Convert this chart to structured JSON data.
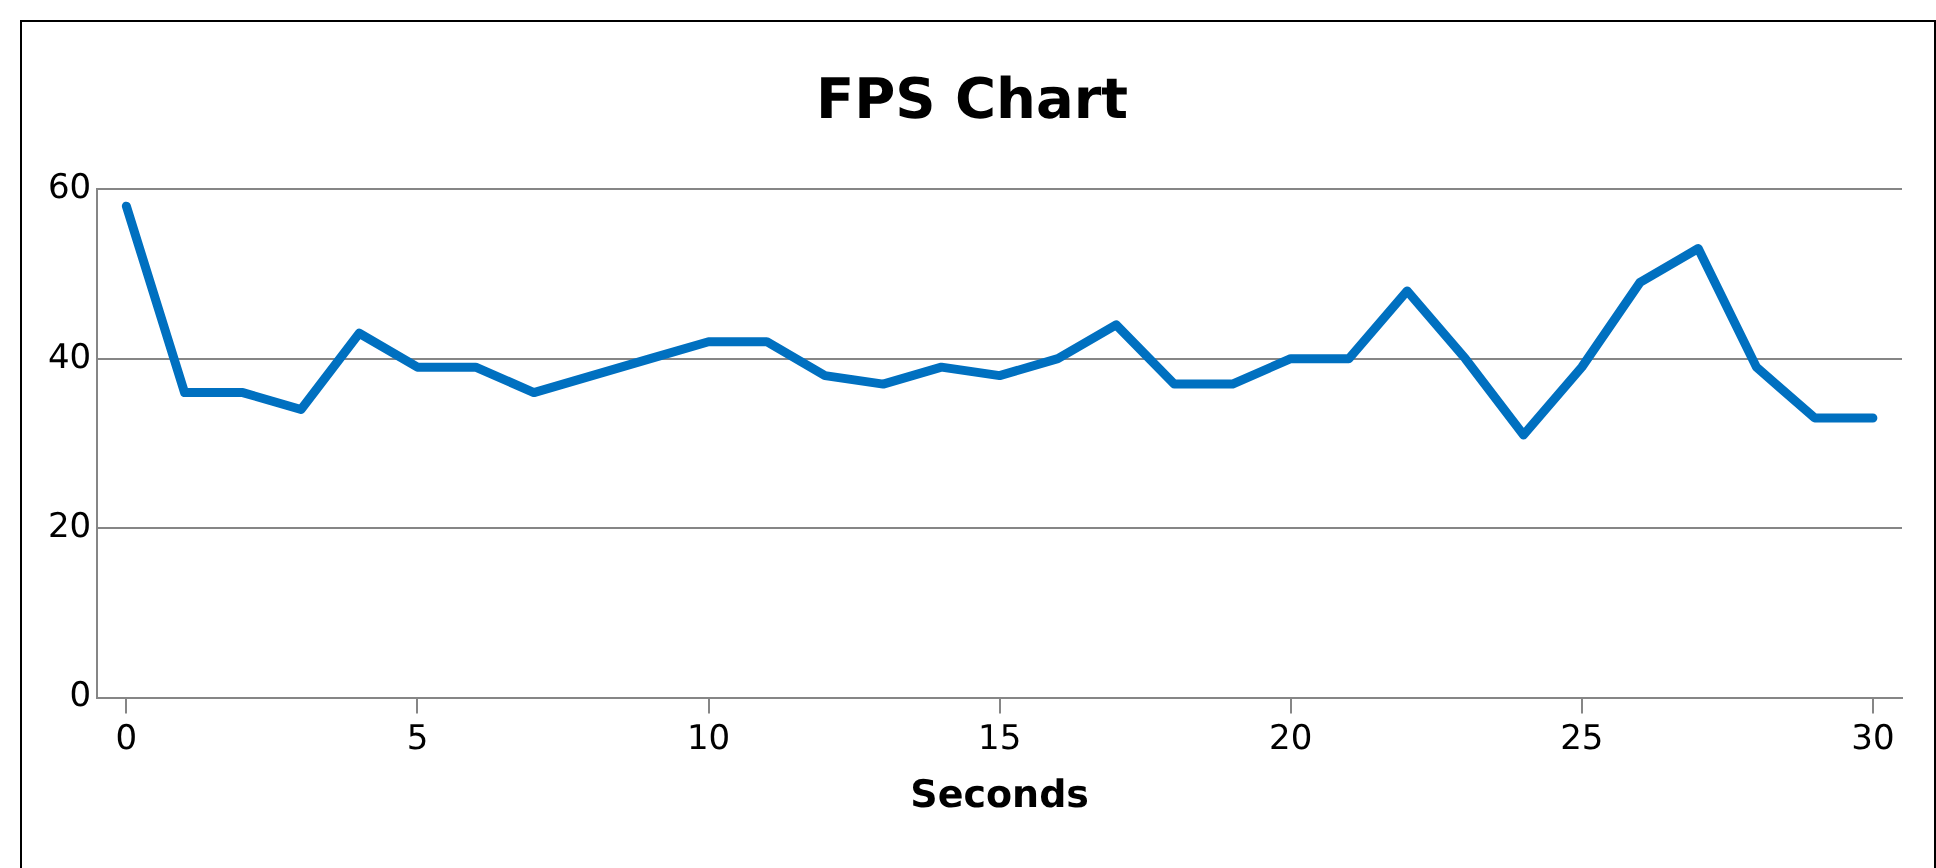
{
  "chart_data": {
    "type": "line",
    "title": "FPS Chart",
    "xlabel": "Seconds",
    "x": [
      0,
      1,
      2,
      3,
      4,
      5,
      6,
      7,
      8,
      9,
      10,
      11,
      12,
      13,
      14,
      15,
      16,
      17,
      18,
      19,
      20,
      21,
      22,
      23,
      24,
      25,
      26,
      27,
      28,
      29,
      30
    ],
    "series": [
      {
        "color": "#0070c0",
        "values": [
          58,
          36,
          36,
          34,
          43,
          39,
          39,
          36,
          38,
          40,
          42,
          42,
          38,
          37,
          39,
          38,
          40,
          44,
          37,
          37,
          40,
          40,
          48,
          40,
          31,
          39,
          49,
          53,
          39,
          33,
          33
        ]
      }
    ],
    "xlim": [
      -0.5,
      30.5
    ],
    "xticks": [
      0,
      5,
      10,
      15,
      20,
      25,
      30
    ],
    "ylim": [
      0,
      60
    ],
    "yticks": [
      0,
      20,
      40,
      60
    ],
    "grid": "y",
    "legend": false,
    "marker": "none",
    "line_style": "solid"
  }
}
